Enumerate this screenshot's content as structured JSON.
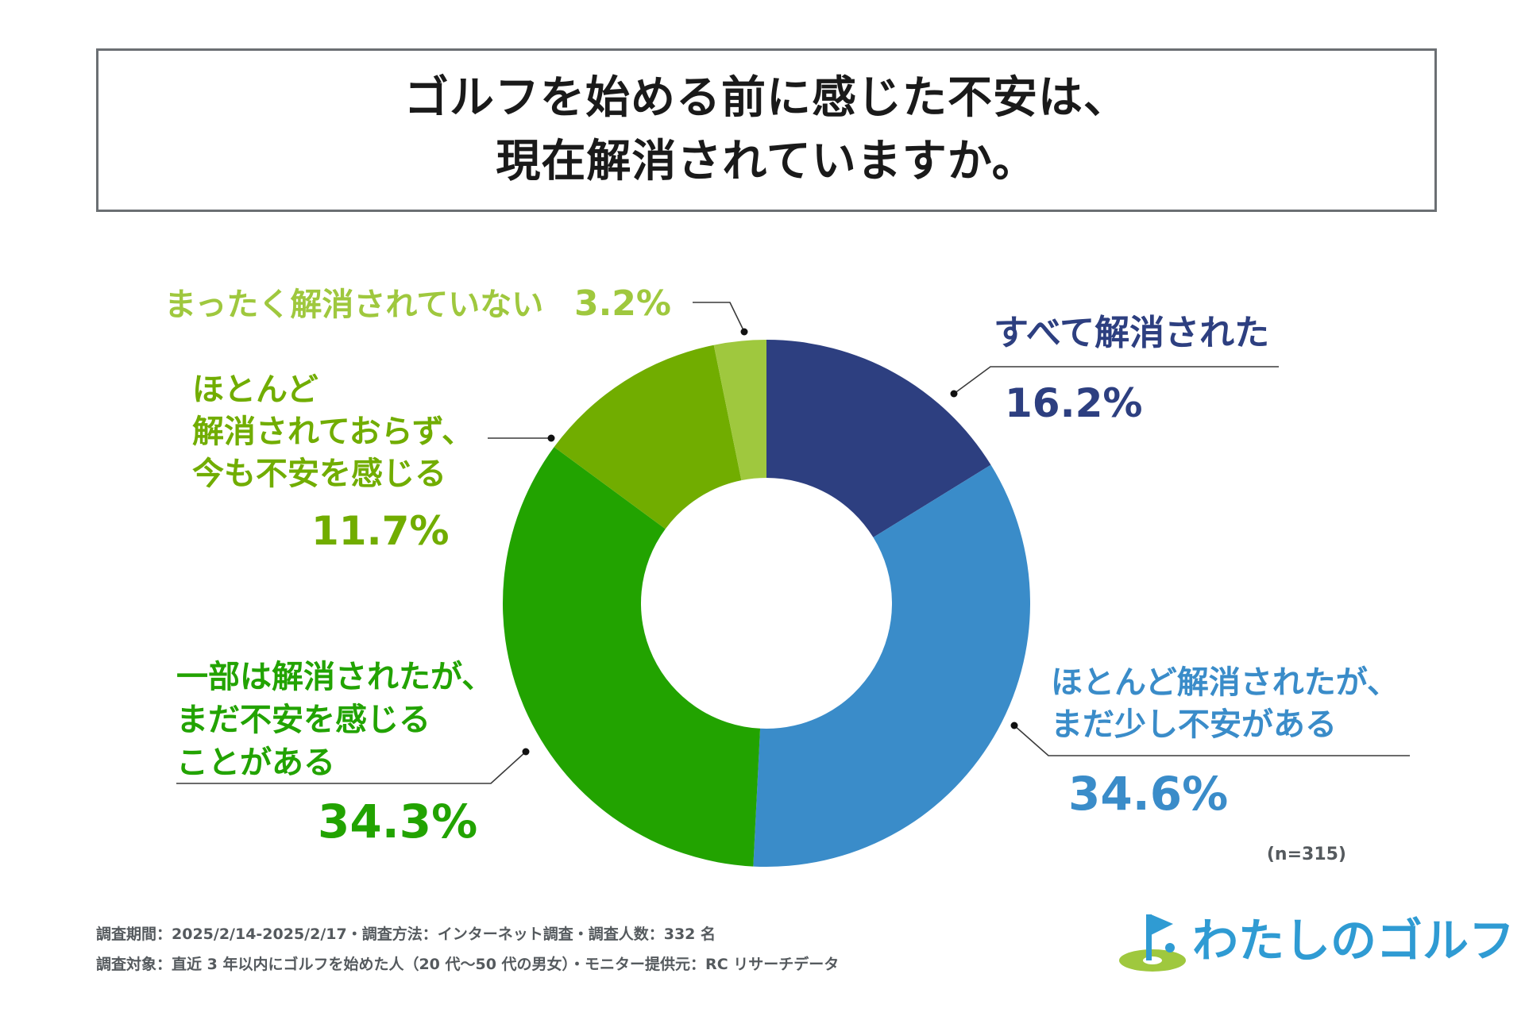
{
  "title": {
    "line1": "ゴルフを始める前に感じた不安は、",
    "line2": "現在解消されていますか。"
  },
  "chart_data": {
    "type": "pie",
    "variant": "donut",
    "categories": [
      "すべて解消された",
      "ほとんど解消されたが、まだ少し不安がある",
      "一部は解消されたが、まだ不安を感じることがある",
      "ほとんど解消されておらず、今も不安を感じる",
      "まったく解消されていない"
    ],
    "values": [
      16.2,
      34.6,
      34.3,
      11.7,
      3.2
    ],
    "value_labels": [
      "16.2%",
      "34.6%",
      "34.3%",
      "11.7%",
      "3.2%"
    ],
    "label_lines": [
      [
        "すべて解消された"
      ],
      [
        "ほとんど解消されたが、",
        "まだ少し不安がある"
      ],
      [
        "一部は解消されたが、",
        "まだ不安を感じる",
        "ことがある"
      ],
      [
        "ほとんど",
        "解消されておらず、",
        "今も不安を感じる"
      ],
      [
        "まったく解消されていない"
      ]
    ],
    "colors": [
      "#2d3f80",
      "#3a8cc9",
      "#22a300",
      "#71ad00",
      "#9fc83e"
    ],
    "sample_note": "(n=315)"
  },
  "footer": {
    "line1": "調査期間：2025/2/14-2025/2/17・調査方法：インターネット調査・調査人数：332 名",
    "line2": "調査対象：直近 3 年以内にゴルフを始めた人（20 代〜50 代の男女）・モニター提供元：RC リサーチデータ"
  },
  "logo": {
    "text": "わたしのゴルフ",
    "icon": "golf-flag-icon",
    "color_text": "#2f9bd3",
    "color_green": "#9fc83e"
  }
}
